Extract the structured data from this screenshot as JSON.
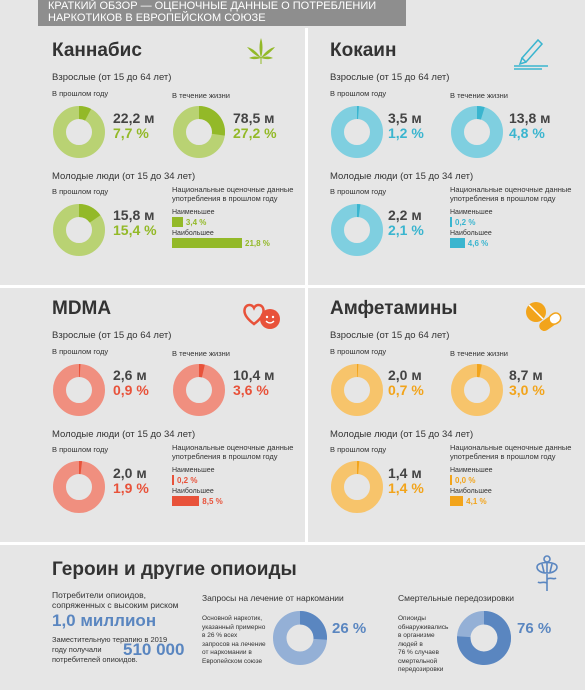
{
  "header": {
    "line1": "КРАТКИЙ ОБЗОР — ОЦЕНОЧНЫЕ ДАННЫЕ О ПОТРЕБЛЕНИИ",
    "line2": "НАРКОТИКОВ В ЕВРОПЕЙСКОМ СОЮЗЕ"
  },
  "labels": {
    "adults": "Взрослые (от 15 до 64 лет)",
    "young": "Молодые люди (от 15 до 34 лет)",
    "last_year": "В прошлом году",
    "lifetime": "В течение жизни",
    "national1": "Национальные оценочные данные",
    "national2": "употребления в прошлом году",
    "min": "Наименьшее",
    "max": "Наибольшее"
  },
  "colors": {
    "cannabis": "#93b928",
    "cocaine": "#3ab5cf",
    "mdma": "#e8523a",
    "amphet": "#f2a41b",
    "opioid": "#5a86c0"
  },
  "icons": {
    "cannabis": "leaf-icon",
    "cocaine": "line-icon",
    "mdma": "hearts-smiley-icon",
    "amphet": "pill-icon",
    "opioid": "poppy-icon"
  },
  "cannabis": {
    "title": "Каннабис",
    "adult_year_count": "22,2 м",
    "adult_year_pct": "7,7 %",
    "adult_year_frac": 0.077,
    "adult_life_count": "78,5 м",
    "adult_life_pct": "27,2 %",
    "adult_life_frac": 0.272,
    "young_count": "15,8 м",
    "young_pct": "15,4 %",
    "young_frac": 0.154,
    "min": "3,4 %",
    "max": "21,8 %",
    "min_frac": 0.034,
    "max_frac": 0.218
  },
  "cocaine": {
    "title": "Кокаин",
    "adult_year_count": "3,5 м",
    "adult_year_pct": "1,2 %",
    "adult_year_frac": 0.012,
    "adult_life_count": "13,8 м",
    "adult_life_pct": "4,8 %",
    "adult_life_frac": 0.048,
    "young_count": "2,2 м",
    "young_pct": "2,1 %",
    "young_frac": 0.021,
    "min": "0,2 %",
    "max": "4,6 %",
    "min_frac": 0.002,
    "max_frac": 0.046
  },
  "mdma": {
    "title": "MDMA",
    "adult_year_count": "2,6 м",
    "adult_year_pct": "0,9 %",
    "adult_year_frac": 0.009,
    "adult_life_count": "10,4 м",
    "adult_life_pct": "3,6 %",
    "adult_life_frac": 0.036,
    "young_count": "2,0 м",
    "young_pct": "1,9 %",
    "young_frac": 0.019,
    "min": "0,2 %",
    "max": "8,5 %",
    "min_frac": 0.002,
    "max_frac": 0.085
  },
  "amphet": {
    "title": "Амфетамины",
    "adult_year_count": "2,0 м",
    "adult_year_pct": "0,7 %",
    "adult_year_frac": 0.007,
    "adult_life_count": "8,7 м",
    "adult_life_pct": "3,0 %",
    "adult_life_frac": 0.03,
    "young_count": "1,4 м",
    "young_pct": "1,4 %",
    "young_frac": 0.014,
    "min": "0,0 %",
    "max": "4,1 %",
    "min_frac": 0.0,
    "max_frac": 0.041
  },
  "opioids": {
    "title": "Героин и другие опиоиды",
    "hr_label1": "Потребители опиоидов,",
    "hr_label2": "сопряженных с высоким риском",
    "hr_value": "1,0 миллион",
    "sub_label1": "Заместительную терапию в 2019",
    "sub_label2": "году получали",
    "sub_label3": "потребителей опиоидов.",
    "sub_value": "510 000",
    "treat_title": "Запросы на лечение от наркомании",
    "treat_desc1": "Основной наркотик,",
    "treat_desc2": "указанный примерно",
    "treat_desc3": "в 26 % всех",
    "treat_desc4": "запросов на лечение",
    "treat_desc5": "от наркомании в",
    "treat_desc6": "Европейском союзе",
    "treat_pct": "26 %",
    "treat_frac": 0.26,
    "od_title": "Смертельные передозировки",
    "od_desc1": "Опиоиды",
    "od_desc2": "обнаруживались",
    "od_desc3": "в организме",
    "od_desc4": "людей в",
    "od_desc5": "76 % случаев",
    "od_desc6": "смертельной",
    "od_desc7": "передозировки",
    "od_pct": "76 %",
    "od_frac": 0.76
  }
}
